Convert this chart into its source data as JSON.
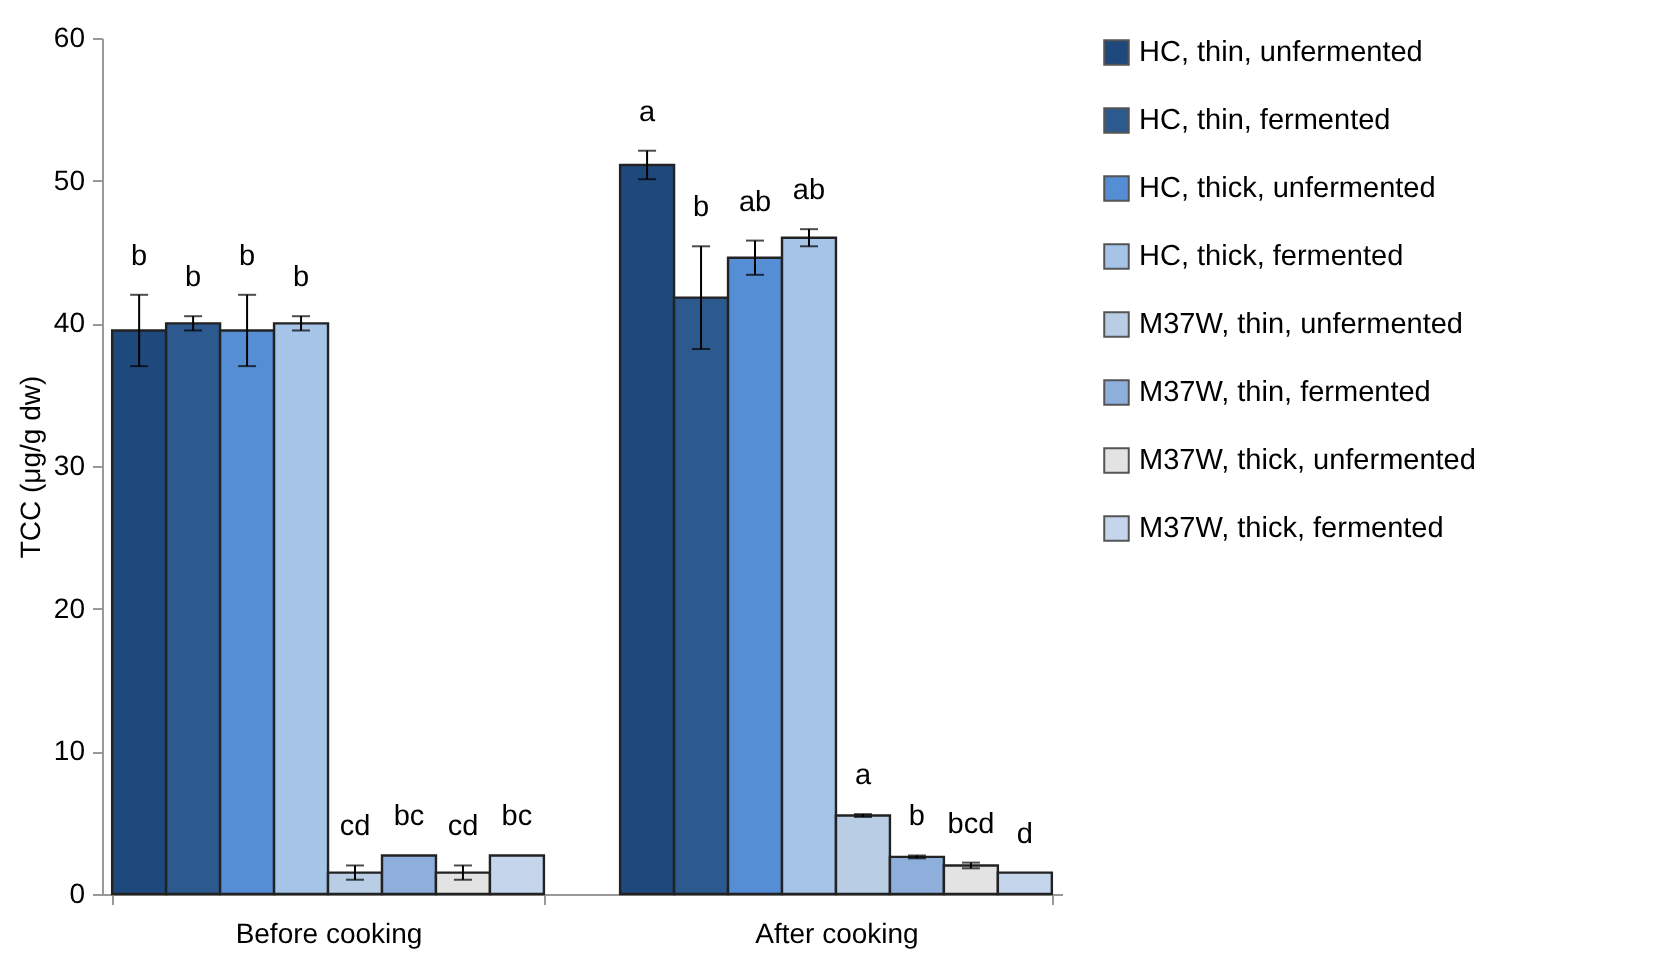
{
  "chart_data": {
    "type": "bar",
    "ylabel": "TCC (μg/g dw)",
    "categories": [
      "Before cooking",
      "After cooking"
    ],
    "ylim": [
      0,
      60
    ],
    "yticks": [
      0,
      10,
      20,
      30,
      40,
      50,
      60
    ],
    "grid": false,
    "legend": "right",
    "series": [
      {
        "name": "HC, thin, unfermented",
        "color": "#1f497d",
        "values": [
          39.5,
          51.1
        ],
        "errors": [
          2.5,
          1.0
        ],
        "value_labels": [
          "b",
          "a"
        ]
      },
      {
        "name": "HC, thin, fermented",
        "color": "#2c5a8f",
        "values": [
          40.0,
          41.8
        ],
        "errors": [
          0.5,
          3.6
        ],
        "value_labels": [
          "b",
          "b"
        ]
      },
      {
        "name": "HC, thick, unfermented",
        "color": "#558ed5",
        "values": [
          39.5,
          44.6
        ],
        "errors": [
          2.5,
          1.2
        ],
        "value_labels": [
          "b",
          "ab"
        ]
      },
      {
        "name": "HC, thick, fermented",
        "color": "#a6c4e8",
        "values": [
          40.0,
          46.0
        ],
        "errors": [
          0.5,
          0.6
        ],
        "value_labels": [
          "b",
          "ab"
        ]
      },
      {
        "name": "M37W, thin, unfermented",
        "color": "#b9cde5",
        "values": [
          1.5,
          5.5
        ],
        "errors": [
          0.5,
          0.1
        ],
        "value_labels": [
          "cd",
          "a"
        ]
      },
      {
        "name": "M37W, thin, fermented",
        "color": "#8eaedb",
        "values": [
          2.7,
          2.6
        ],
        "errors": [
          null,
          0.1
        ],
        "value_labels": [
          "bc",
          "b"
        ]
      },
      {
        "name": "M37W, thick, unfermented",
        "color": "#e3e3e3",
        "values": [
          1.5,
          2.0
        ],
        "errors": [
          0.5,
          0.2
        ],
        "value_labels": [
          "cd",
          "bcd"
        ]
      },
      {
        "name": "M37W, thick, fermented",
        "color": "#c5d6ec",
        "values": [
          2.7,
          1.5
        ],
        "errors": [
          null,
          null
        ],
        "value_labels": [
          "bc",
          "d"
        ]
      }
    ]
  }
}
